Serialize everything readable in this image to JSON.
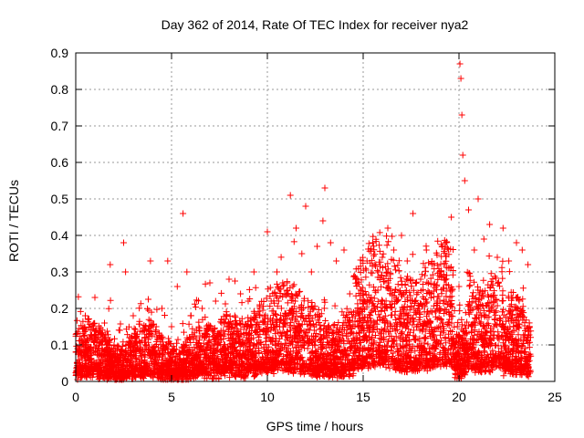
{
  "chart_data": {
    "type": "scatter",
    "title": "Day 362 of 2014, Rate Of TEC Index for receiver nya2",
    "xlabel": "GPS time / hours",
    "ylabel": "ROTI / TECUs",
    "xlim": [
      0,
      25
    ],
    "ylim": [
      0,
      0.9
    ],
    "xticks": [
      0,
      5,
      10,
      15,
      20,
      25
    ],
    "xtick_labels": [
      "0",
      "5",
      "10",
      "15",
      "20",
      "25"
    ],
    "yticks": [
      0,
      0.1,
      0.2,
      0.3,
      0.4,
      0.5,
      0.6,
      0.7,
      0.8,
      0.9
    ],
    "ytick_labels": [
      "0",
      "0.1",
      "0.2",
      "0.3",
      "0.4",
      "0.5",
      "0.6",
      "0.7",
      "0.8",
      "0.9"
    ],
    "grid": true,
    "marker": "+",
    "marker_color": "#ff0000",
    "series": [
      {
        "name": "ROTI",
        "x": [
          0.1,
          0.3,
          0.5,
          0.8,
          1.0,
          1.2,
          1.5,
          1.8,
          2.0,
          2.3,
          2.5,
          2.6,
          2.8,
          3.0,
          3.3,
          3.6,
          3.9,
          4.2,
          4.5,
          4.8,
          5.0,
          5.3,
          5.6,
          5.8,
          6.0,
          6.3,
          6.6,
          7.0,
          7.3,
          7.6,
          8.0,
          8.3,
          8.6,
          9.0,
          9.3,
          9.6,
          10.0,
          10.2,
          10.5,
          10.8,
          11.0,
          11.2,
          11.5,
          11.8,
          12.0,
          12.3,
          12.6,
          12.9,
          13.0,
          13.3,
          13.6,
          14.0,
          14.3,
          14.6,
          15.0,
          15.2,
          15.5,
          15.8,
          16.0,
          16.3,
          16.6,
          17.0,
          17.3,
          17.6,
          18.0,
          18.3,
          18.6,
          19.0,
          19.3,
          19.6,
          20.0,
          20.05,
          20.1,
          20.15,
          20.2,
          20.3,
          20.5,
          20.8,
          21.0,
          21.3,
          21.6,
          22.0,
          22.3,
          22.6,
          23.0,
          23.3,
          23.6
        ],
        "y": [
          0.09,
          0.11,
          0.18,
          0.12,
          0.23,
          0.14,
          0.16,
          0.32,
          0.1,
          0.14,
          0.38,
          0.3,
          0.12,
          0.18,
          0.11,
          0.14,
          0.33,
          0.15,
          0.2,
          0.33,
          0.15,
          0.26,
          0.46,
          0.3,
          0.18,
          0.14,
          0.2,
          0.27,
          0.22,
          0.17,
          0.28,
          0.18,
          0.24,
          0.22,
          0.3,
          0.21,
          0.41,
          0.22,
          0.3,
          0.27,
          0.24,
          0.51,
          0.42,
          0.35,
          0.48,
          0.3,
          0.37,
          0.44,
          0.53,
          0.38,
          0.33,
          0.36,
          0.24,
          0.28,
          0.2,
          0.33,
          0.38,
          0.3,
          0.34,
          0.27,
          0.36,
          0.4,
          0.33,
          0.46,
          0.28,
          0.36,
          0.32,
          0.3,
          0.38,
          0.45,
          0.26,
          0.87,
          0.83,
          0.73,
          0.62,
          0.55,
          0.47,
          0.36,
          0.5,
          0.39,
          0.43,
          0.34,
          0.42,
          0.33,
          0.38,
          0.36,
          0.32
        ]
      }
    ]
  }
}
